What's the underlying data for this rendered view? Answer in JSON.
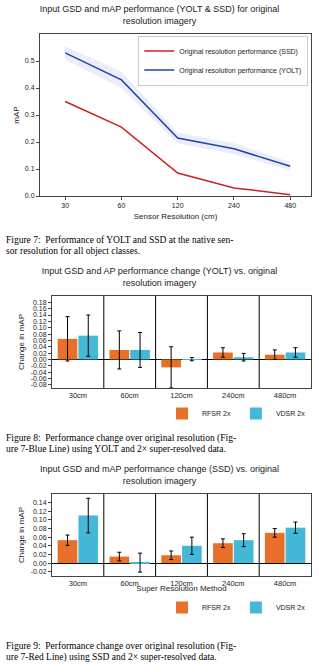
{
  "chart_data": [
    {
      "type": "line",
      "title": "Input GSD and mAP performance (YOLT & SSD) for original resolution imagery",
      "xlabel": "Sensor Resolution (cm)",
      "ylabel": "mAP",
      "caption": "Figure 7:  Performance of YOLT and SSD at the native sen-\nsor resolution for all object classes.",
      "log": "x",
      "grid": false,
      "legend": "upper right",
      "x": [
        30,
        60,
        120,
        240,
        480
      ],
      "series": [
        {
          "name": "Original resolution performance (YOLT)",
          "color": "#2244aa",
          "values": [
            0.53,
            0.43,
            0.215,
            0.175,
            0.11
          ],
          "upper": [
            0.555,
            0.46,
            0.235,
            0.195,
            0.125
          ],
          "lower": [
            0.505,
            0.4,
            0.195,
            0.155,
            0.095
          ],
          "band_color": "#aabbee"
        },
        {
          "name": "Original resolution performance (SSD)",
          "color": "#cc2222",
          "values": [
            0.35,
            0.255,
            0.085,
            0.03,
            0.005
          ]
        }
      ],
      "xlim": [
        22,
        620
      ],
      "xticks": [
        30,
        60,
        120,
        240,
        480
      ],
      "ylim": [
        0.0,
        0.6
      ],
      "yticks": [
        {
          "value": 0.0,
          "label": "0.0"
        },
        0.1,
        0.2,
        0.3,
        0.4,
        0.5
      ]
    },
    {
      "type": "bar",
      "title": "Input GSD and AP performance change (YOLT) vs. original resolution imagery",
      "ylabel": "Change in mAP",
      "caption": "Figure 8:  Performance change over original resolution (Fig-\nure 7-Blue Line) using YOLT and 2× super-resolved data.",
      "grid": false,
      "legend": "lower right",
      "categories": [
        "30cm",
        "60cm",
        "120cm",
        "240cm",
        "480cm"
      ],
      "series": [
        {
          "name": "RFSR 2x",
          "color": "#e8702a",
          "values": [
            0.065,
            0.03,
            -0.025,
            0.022,
            0.015
          ],
          "errors": [
            0.07,
            0.06,
            0.065,
            0.015,
            0.015
          ]
        },
        {
          "name": "VDSR 2x",
          "color": "#45b8d8",
          "values": [
            0.075,
            0.03,
            0.001,
            0.007,
            0.022
          ],
          "errors": [
            0.065,
            0.055,
            0.005,
            0.012,
            0.015
          ]
        }
      ],
      "ylim": [
        -0.09,
        0.2
      ],
      "yticks": [
        -0.08,
        -0.06,
        -0.04,
        -0.02,
        {
          "value": 0.0,
          "label": "0.00"
        },
        0.02,
        0.04,
        0.06,
        0.08,
        {
          "value": 0.1,
          "label": "0.10"
        },
        0.12,
        0.14,
        0.16,
        0.18
      ]
    },
    {
      "type": "bar",
      "title": "Input GSD and mAP performance change (SSD) vs. original resolution imagery",
      "ylabel": "Change in mAP",
      "xlabel": "Super Resolution Method",
      "caption": "Figure 9:  Performance change over original resolution (Fig-\nure 7-Red Line) using SSD and 2× super-resolved data.",
      "grid": false,
      "legend": "lower right",
      "categories": [
        "30cm",
        "60cm",
        "120cm",
        "240cm",
        "480cm"
      ],
      "series": [
        {
          "name": "RFSR 2x",
          "color": "#e8702a",
          "values": [
            0.053,
            0.015,
            0.018,
            0.046,
            0.07
          ],
          "errors": [
            0.012,
            0.01,
            0.01,
            0.01,
            0.01
          ]
        },
        {
          "name": "VDSR 2x",
          "color": "#45b8d8",
          "values": [
            0.11,
            0.001,
            0.04,
            0.053,
            0.082
          ],
          "errors": [
            0.04,
            0.022,
            0.02,
            0.015,
            0.013
          ]
        }
      ],
      "ylim": [
        -0.03,
        0.16
      ],
      "yticks": [
        -0.02,
        {
          "value": 0.0,
          "label": "0.00"
        },
        0.02,
        0.04,
        0.06,
        0.08,
        {
          "value": 0.1,
          "label": "0.10"
        },
        0.12,
        0.14
      ]
    }
  ]
}
